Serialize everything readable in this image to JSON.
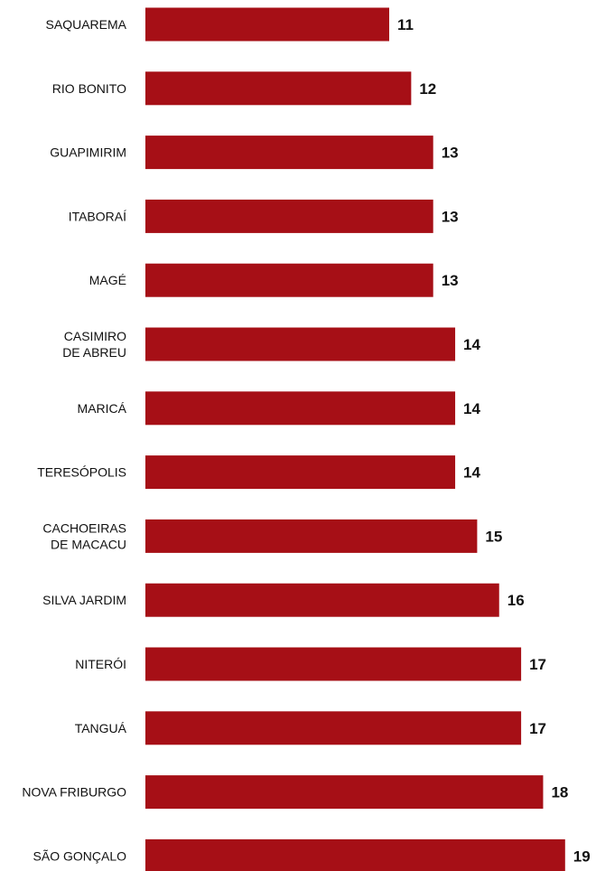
{
  "bar_color": "#a60f16",
  "chart_data": {
    "type": "bar",
    "orientation": "horizontal",
    "categories": [
      "SAQUAREMA",
      "RIO BONITO",
      "GUAPIMIRIM",
      "ITABORAÍ",
      "MAGÉ",
      "CASIMIRO DE ABREU",
      "MARICÁ",
      "TERESÓPOLIS",
      "CACHOEIRAS DE MACACU",
      "SILVA JARDIM",
      "NITERÓI",
      "TANGUÁ",
      "NOVA FRIBURGO",
      "SÃO GONÇALO"
    ],
    "category_lines": [
      [
        "SAQUAREMA"
      ],
      [
        "RIO BONITO"
      ],
      [
        "GUAPIMIRIM"
      ],
      [
        "ITABORAÍ"
      ],
      [
        "MAGÉ"
      ],
      [
        "CASIMIRO",
        "DE ABREU"
      ],
      [
        "MARICÁ"
      ],
      [
        "TERESÓPOLIS"
      ],
      [
        "CACHOEIRAS",
        "DE MACACU"
      ],
      [
        "SILVA JARDIM"
      ],
      [
        "NITERÓI"
      ],
      [
        "TANGUÁ"
      ],
      [
        "NOVA FRIBURGO"
      ],
      [
        "SÃO GONÇALO"
      ]
    ],
    "values": [
      11,
      12,
      13,
      13,
      13,
      14,
      14,
      14,
      15,
      16,
      17,
      17,
      18,
      19
    ],
    "title": "",
    "xlabel": "",
    "ylabel": "",
    "xlim": [
      0,
      19
    ],
    "grid": false,
    "legend": "none",
    "data_labels": true
  }
}
